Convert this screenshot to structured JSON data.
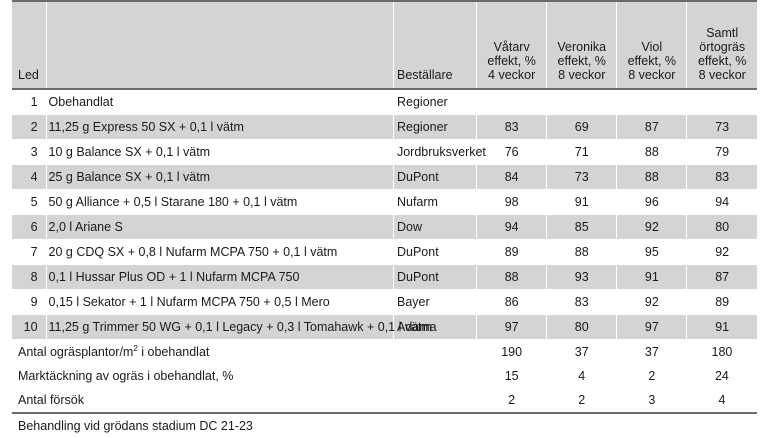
{
  "headers": {
    "led": "Led",
    "bestallare": "Beställare",
    "columns": [
      [
        "Våtarv",
        "effekt, %",
        "4 veckor"
      ],
      [
        "Veronika",
        "effekt, %",
        "8 veckor"
      ],
      [
        "Viol",
        "effekt, %",
        "8 veckor"
      ],
      [
        "Samtl",
        "örtogräs",
        "effekt, %",
        "8 veckor"
      ]
    ]
  },
  "rows": [
    {
      "led": "1",
      "treatment": "Obehandlat",
      "bestallare": "Regioner",
      "values": [
        "",
        "",
        "",
        ""
      ]
    },
    {
      "led": "2",
      "treatment": "11,25 g Express 50 SX + 0,1 l vätm",
      "bestallare": "Regioner",
      "values": [
        "83",
        "69",
        "87",
        "73"
      ]
    },
    {
      "led": "3",
      "treatment": "10 g Balance SX + 0,1 l vätm",
      "bestallare": "Jordbruksverket",
      "values": [
        "76",
        "71",
        "88",
        "79"
      ]
    },
    {
      "led": "4",
      "treatment": "25 g Balance SX + 0,1 l vätm",
      "bestallare": "DuPont",
      "values": [
        "84",
        "73",
        "88",
        "83"
      ]
    },
    {
      "led": "5",
      "treatment": "50 g Alliance + 0,5 l Starane 180 + 0,1 l vätm",
      "bestallare": "Nufarm",
      "values": [
        "98",
        "91",
        "96",
        "94"
      ]
    },
    {
      "led": "6",
      "treatment": "2,0 l Ariane S",
      "bestallare": "Dow",
      "values": [
        "94",
        "85",
        "92",
        "80"
      ]
    },
    {
      "led": "7",
      "treatment": "20 g CDQ SX + 0,8 l Nufarm MCPA 750 + 0,1 l vätm",
      "bestallare": "DuPont",
      "values": [
        "89",
        "88",
        "95",
        "92"
      ]
    },
    {
      "led": "8",
      "treatment": "0,1 l Hussar Plus OD + 1 l Nufarm MCPA 750",
      "bestallare": "DuPont",
      "values": [
        "88",
        "93",
        "91",
        "87"
      ]
    },
    {
      "led": "9",
      "treatment": "0,15 l Sekator + 1 l Nufarm MCPA 750 + 0,5 l Mero",
      "bestallare": "Bayer",
      "values": [
        "86",
        "83",
        "92",
        "89"
      ]
    },
    {
      "led": "10",
      "treatment": "11,25 g Trimmer 50 WG + 0,1 l Legacy + 0,3 l Tomahawk + 0,1 l vätm",
      "bestallare": "Adama",
      "values": [
        "97",
        "80",
        "97",
        "91"
      ]
    }
  ],
  "summary": [
    {
      "label": "Antal ogräsplantor/m",
      "sup": "2",
      "label_after": " i obehandlat",
      "values": [
        "190",
        "37",
        "37",
        "180"
      ]
    },
    {
      "label": "Marktäckning av ogräs i obehandlat, %",
      "sup": "",
      "label_after": "",
      "values": [
        "15",
        "4",
        "2",
        "24"
      ]
    },
    {
      "label": "Antal försök",
      "sup": "",
      "label_after": "",
      "values": [
        "2",
        "2",
        "3",
        "4"
      ]
    }
  ],
  "note": "Behandling vid grödans stadium DC 21-23"
}
